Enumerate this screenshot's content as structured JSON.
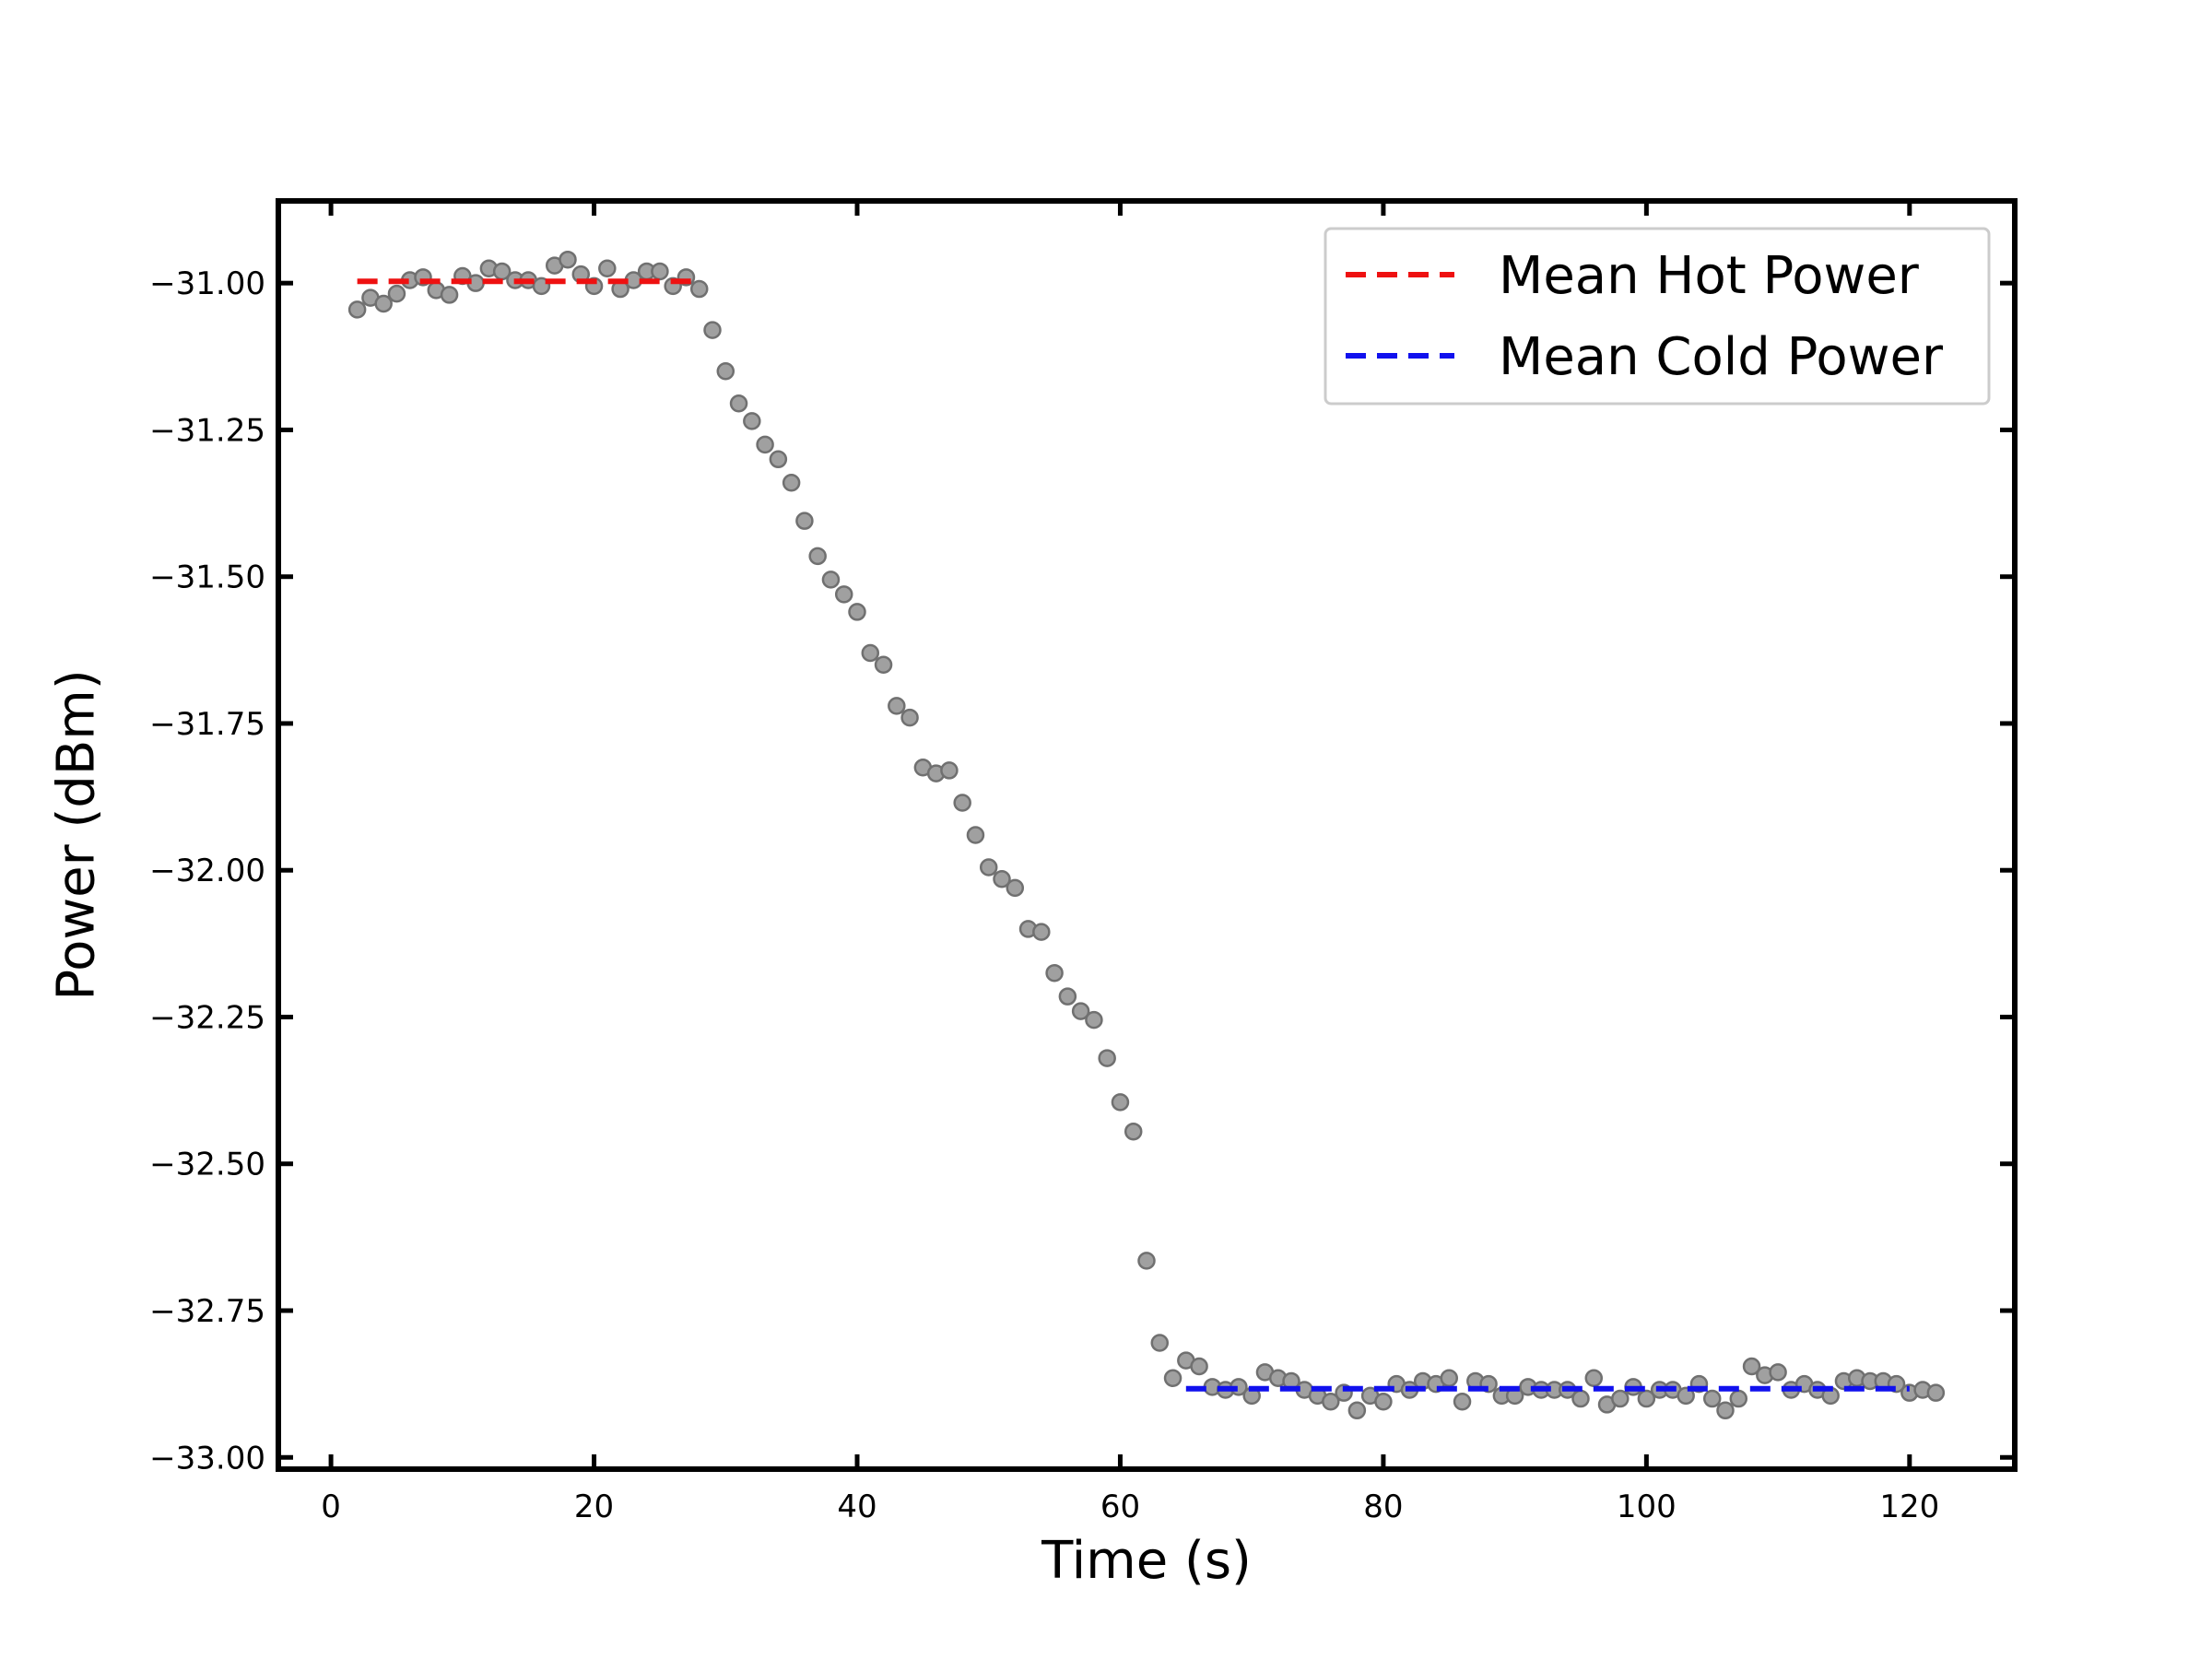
{
  "chart_data": {
    "type": "scatter",
    "xlabel": "Time (s)",
    "ylabel": "Power (dBm)",
    "xlim": [
      -4,
      128
    ],
    "ylim": [
      -33.02,
      -30.86
    ],
    "xticks": [
      0,
      20,
      40,
      60,
      80,
      100,
      120
    ],
    "yticks": [
      -31.0,
      -31.25,
      -31.5,
      -31.75,
      -32.0,
      -32.25,
      -32.5,
      -32.75,
      -33.0
    ],
    "xtick_labels": [
      "0",
      "20",
      "40",
      "60",
      "80",
      "100",
      "120"
    ],
    "ytick_labels": [
      "−31.00",
      "−31.25",
      "−31.50",
      "−31.75",
      "−32.00",
      "−32.25",
      "−32.50",
      "−32.75",
      "−33.00"
    ],
    "grid": false,
    "legend_position": "top-right",
    "scatter": {
      "color": "#a0a0a0",
      "edge_color": "#707070",
      "x": [
        2,
        3,
        4,
        5,
        6,
        7,
        8,
        9,
        10,
        11,
        12,
        13,
        14,
        15,
        16,
        17,
        18,
        19,
        20,
        21,
        22,
        23,
        24,
        25,
        26,
        27,
        28,
        29,
        30,
        31,
        32,
        33,
        34,
        35,
        36,
        37,
        38,
        39,
        40,
        41,
        42,
        43,
        44,
        45,
        46,
        47,
        48,
        49,
        50,
        51,
        52,
        53,
        54,
        55,
        56,
        57,
        58,
        59,
        60,
        61,
        62,
        63,
        64,
        65,
        66,
        67,
        68,
        69,
        70,
        71,
        72,
        73,
        74,
        75,
        76,
        77,
        78,
        79,
        80,
        81,
        82,
        83,
        84,
        85,
        86,
        87,
        88,
        89,
        90,
        91,
        92,
        93,
        94,
        95,
        96,
        97,
        98,
        99,
        100,
        101,
        102,
        103,
        104,
        105,
        106,
        107,
        108,
        109,
        110,
        111,
        112,
        113,
        114,
        115,
        116,
        117,
        118,
        119,
        120,
        121,
        122
      ],
      "y": [
        -31.045,
        -31.025,
        -31.035,
        -31.018,
        -30.995,
        -30.99,
        -31.012,
        -31.02,
        -30.988,
        -31.0,
        -30.975,
        -30.98,
        -30.995,
        -30.995,
        -31.005,
        -30.97,
        -30.96,
        -30.985,
        -31.005,
        -30.975,
        -31.01,
        -30.995,
        -30.98,
        -30.98,
        -31.005,
        -30.99,
        -31.01,
        -31.08,
        -31.15,
        -31.205,
        -31.235,
        -31.275,
        -31.3,
        -31.34,
        -31.405,
        -31.465,
        -31.505,
        -31.53,
        -31.56,
        -31.63,
        -31.65,
        -31.72,
        -31.74,
        -31.825,
        -31.835,
        -31.83,
        -31.885,
        -31.94,
        -31.995,
        -32.015,
        -32.03,
        -32.1,
        -32.105,
        -32.175,
        -32.215,
        -32.24,
        -32.255,
        -32.32,
        -32.395,
        -32.445,
        -32.665,
        -32.805,
        -32.865,
        -32.835,
        -32.845,
        -32.88,
        -32.885,
        -32.88,
        -32.895,
        -32.855,
        -32.865,
        -32.87,
        -32.885,
        -32.895,
        -32.905,
        -32.89,
        -32.92,
        -32.895,
        -32.905,
        -32.875,
        -32.885,
        -32.87,
        -32.875,
        -32.865,
        -32.905,
        -32.87,
        -32.875,
        -32.895,
        -32.895,
        -32.88,
        -32.885,
        -32.885,
        -32.885,
        -32.9,
        -32.865,
        -32.91,
        -32.9,
        -32.88,
        -32.9,
        -32.885,
        -32.885,
        -32.895,
        -32.875,
        -32.9,
        -32.92,
        -32.9,
        -32.845,
        -32.86,
        -32.855,
        -32.885,
        -32.875,
        -32.885,
        -32.895,
        -32.87,
        -32.865,
        -32.87,
        -32.87,
        -32.875,
        -32.89,
        -32.885,
        -32.89
      ]
    },
    "lines": [
      {
        "name": "Mean Hot Power",
        "color": "#ee1111",
        "x": [
          2,
          28
        ],
        "y": [
          -30.997,
          -30.997
        ]
      },
      {
        "name": "Mean Cold Power",
        "color": "#1111ee",
        "x": [
          65,
          120
        ],
        "y": [
          -32.883,
          -32.883
        ]
      }
    ]
  }
}
